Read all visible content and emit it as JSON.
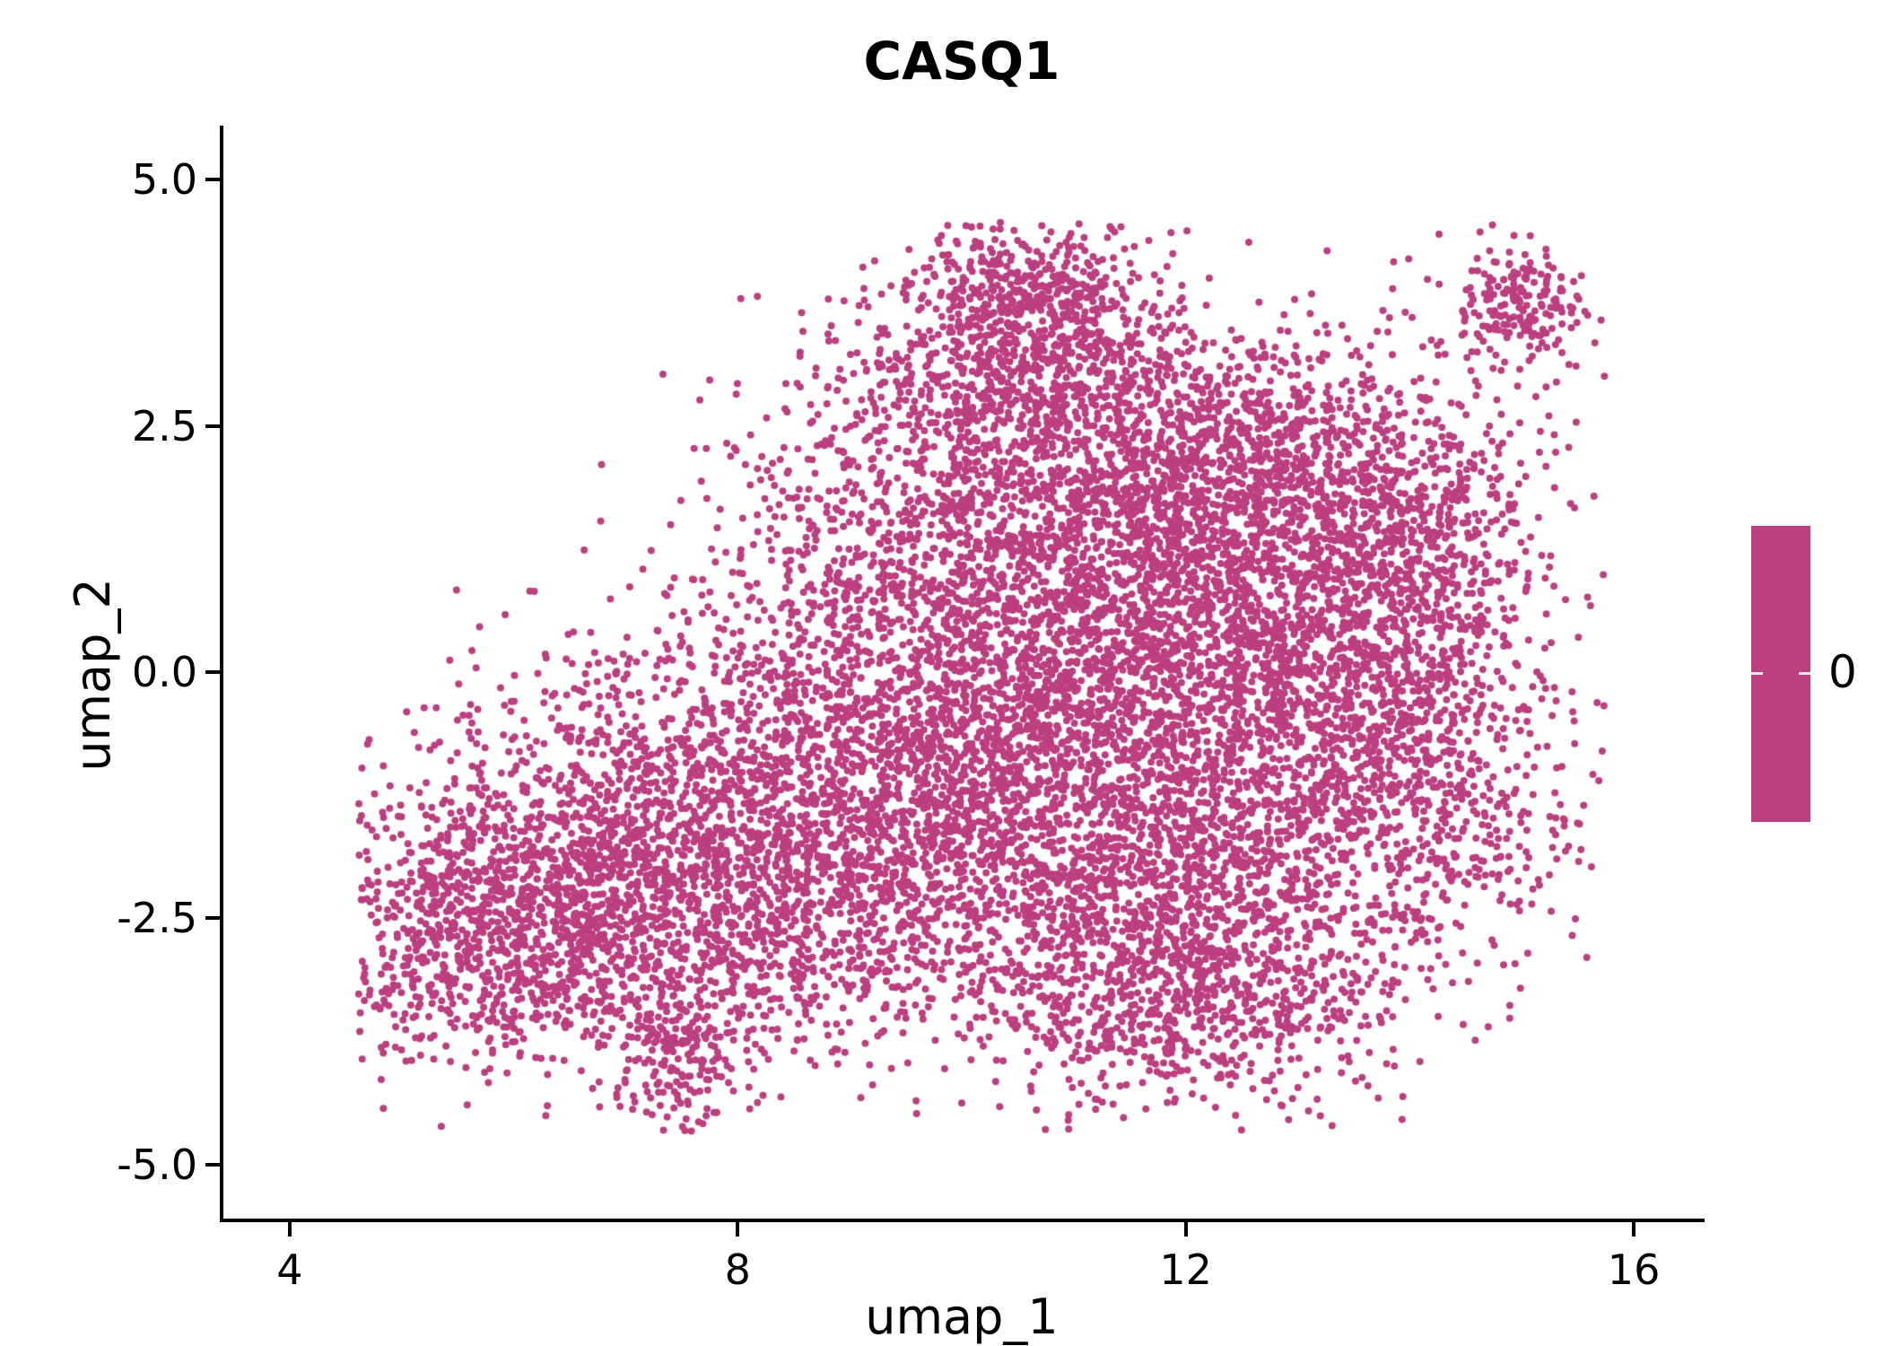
{
  "chart_data": {
    "type": "scatter",
    "title": "CASQ1",
    "xlabel": "umap_1",
    "ylabel": "umap_2",
    "xlim": [
      3.4,
      16.6
    ],
    "ylim": [
      -5.55,
      5.55
    ],
    "xticks": [
      4,
      8,
      12,
      16
    ],
    "xtick_labels": [
      "4",
      "8",
      "12",
      "16"
    ],
    "yticks": [
      5.0,
      2.5,
      0.0,
      -2.5,
      -5.0
    ],
    "ytick_labels": [
      "5.0",
      "2.5",
      "0.0",
      "-2.5",
      "-5.0"
    ],
    "grid": false,
    "legend_position": "right",
    "point_color": "#BC3F7F",
    "point_radius_px": 4,
    "n_points_approx": 14000,
    "colorbar": {
      "label": "0",
      "color": "#BC3F7F"
    },
    "seed": 20240613,
    "clip": {
      "xmin": 4.6,
      "xmax": 15.75,
      "ymin": -4.68,
      "ymax": 4.58
    },
    "clusters": [
      {
        "x": 10.55,
        "y": 3.85,
        "sx": 0.5,
        "sy": 0.4,
        "n": 450
      },
      {
        "x": 10.35,
        "y": 2.9,
        "sx": 0.85,
        "sy": 0.55,
        "n": 550
      },
      {
        "x": 11.6,
        "y": 2.4,
        "sx": 1.1,
        "sy": 0.75,
        "n": 800
      },
      {
        "x": 12.9,
        "y": 1.6,
        "sx": 0.95,
        "sy": 0.85,
        "n": 700
      },
      {
        "x": 13.6,
        "y": 0.3,
        "sx": 0.8,
        "sy": 1.0,
        "n": 700
      },
      {
        "x": 12.4,
        "y": 0.2,
        "sx": 1.1,
        "sy": 1.1,
        "n": 1100
      },
      {
        "x": 11.2,
        "y": 1.0,
        "sx": 1.0,
        "sy": 1.0,
        "n": 900
      },
      {
        "x": 10.2,
        "y": 0.0,
        "sx": 1.0,
        "sy": 1.1,
        "n": 800
      },
      {
        "x": 12.6,
        "y": -1.7,
        "sx": 1.2,
        "sy": 1.0,
        "n": 1100
      },
      {
        "x": 11.3,
        "y": -2.6,
        "sx": 1.0,
        "sy": 0.9,
        "n": 800
      },
      {
        "x": 12.1,
        "y": -3.4,
        "sx": 0.9,
        "sy": 0.55,
        "n": 450
      },
      {
        "x": 14.2,
        "y": -1.0,
        "sx": 0.7,
        "sy": 0.9,
        "n": 400
      },
      {
        "x": 14.0,
        "y": 1.8,
        "sx": 0.6,
        "sy": 0.6,
        "n": 300
      },
      {
        "x": 8.6,
        "y": -0.6,
        "sx": 1.0,
        "sy": 1.0,
        "n": 650
      },
      {
        "x": 9.2,
        "y": 1.2,
        "sx": 0.8,
        "sy": 0.8,
        "n": 350
      },
      {
        "x": 7.3,
        "y": -1.3,
        "sx": 1.0,
        "sy": 0.8,
        "n": 600
      },
      {
        "x": 6.3,
        "y": -2.2,
        "sx": 0.9,
        "sy": 0.8,
        "n": 800
      },
      {
        "x": 5.6,
        "y": -2.8,
        "sx": 0.6,
        "sy": 0.6,
        "n": 400
      },
      {
        "x": 7.3,
        "y": -2.9,
        "sx": 0.9,
        "sy": 0.6,
        "n": 500
      },
      {
        "x": 8.3,
        "y": -2.2,
        "sx": 0.8,
        "sy": 0.8,
        "n": 450
      },
      {
        "x": 7.45,
        "y": -3.95,
        "sx": 0.25,
        "sy": 0.42,
        "n": 150
      },
      {
        "x": 15.0,
        "y": 3.75,
        "sx": 0.33,
        "sy": 0.27,
        "n": 200
      },
      {
        "x": 9.3,
        "y": -1.9,
        "sx": 0.8,
        "sy": 0.9,
        "n": 450
      },
      {
        "x": 10.4,
        "y": -1.2,
        "sx": 0.9,
        "sy": 0.9,
        "n": 600
      }
    ]
  }
}
